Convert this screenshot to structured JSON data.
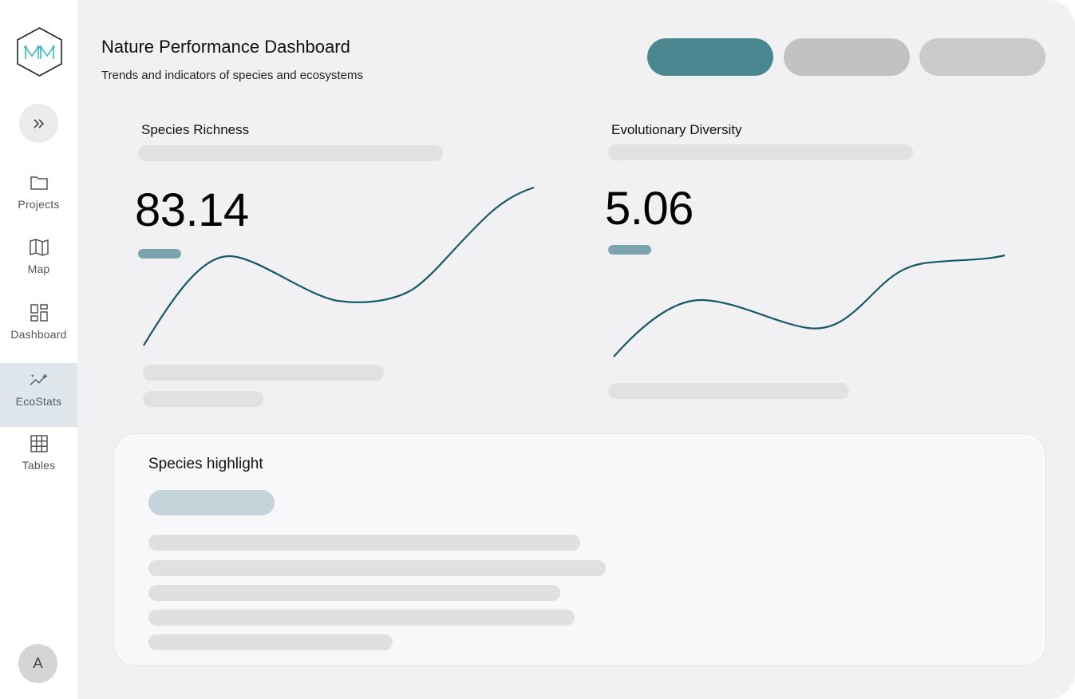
{
  "app": {
    "logo_letters": "NM",
    "title": "Nature Performance Dashboard",
    "subtitle": "Trends and indicators of species and ecosystems"
  },
  "sidebar": {
    "expand_icon": "double-chevron-right-icon",
    "items": [
      {
        "label": "Projects",
        "icon": "folder-icon",
        "active": false
      },
      {
        "label": "Map",
        "icon": "map-icon",
        "active": false
      },
      {
        "label": "Dashboard",
        "icon": "dashboard-icon",
        "active": false
      },
      {
        "label": "EcoStats",
        "icon": "sparkle-trend-icon",
        "active": true
      },
      {
        "label": "Tables",
        "icon": "table-grid-icon",
        "active": false
      }
    ],
    "avatar_initial": "A"
  },
  "colors": {
    "accent": "#4a8791",
    "line": "#16586a",
    "active_nav": "#dfe6ec"
  },
  "cards": [
    {
      "title": "Species Richness",
      "value": "83.14"
    },
    {
      "title": "Evolutionary Diversity",
      "value": "5.06"
    }
  ],
  "highlight": {
    "title": "Species highlight"
  }
}
